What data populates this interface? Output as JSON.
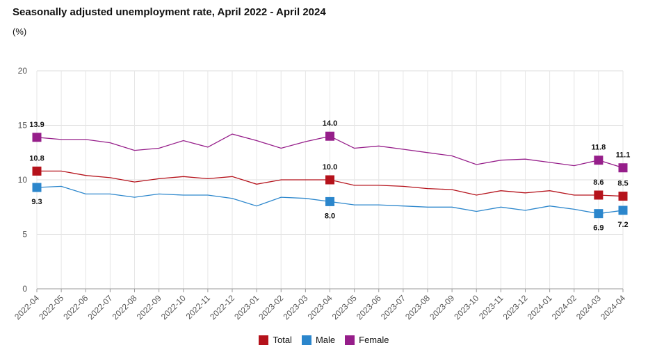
{
  "title": "Seasonally adjusted unemployment rate, April 2022 - April 2024",
  "unit": "(%)",
  "colors": {
    "Total": "#b5121b",
    "Male": "#2b86cc",
    "Female": "#961e8a"
  },
  "chart_data": {
    "type": "line",
    "title": "Seasonally adjusted unemployment rate, April 2022 - April 2024",
    "ylabel": "(%)",
    "xlabel": "",
    "ylim": [
      0,
      20
    ],
    "yticks": [
      0,
      5,
      10,
      15,
      20
    ],
    "grid": true,
    "legend": "bottom",
    "categories": [
      "2022-04",
      "2022-05",
      "2022-06",
      "2022-07",
      "2022-08",
      "2022-09",
      "2022-10",
      "2022-11",
      "2022-12",
      "2023-01",
      "2023-02",
      "2023-03",
      "2023-04",
      "2023-05",
      "2023-06",
      "2023-07",
      "2023-08",
      "2023-09",
      "2023-10",
      "2023-11",
      "2023-12",
      "2024-01",
      "2024-02",
      "2024-03",
      "2024-04"
    ],
    "series": [
      {
        "name": "Total",
        "color": "#b5121b",
        "values": [
          10.8,
          10.8,
          10.4,
          10.2,
          9.8,
          10.1,
          10.3,
          10.1,
          10.3,
          9.6,
          10.0,
          10.0,
          10.0,
          9.5,
          9.5,
          9.4,
          9.2,
          9.1,
          8.6,
          9.0,
          8.8,
          9.0,
          8.6,
          8.6,
          8.5
        ]
      },
      {
        "name": "Male",
        "color": "#2b86cc",
        "values": [
          9.3,
          9.4,
          8.7,
          8.7,
          8.4,
          8.7,
          8.6,
          8.6,
          8.3,
          7.6,
          8.4,
          8.3,
          8.0,
          7.7,
          7.7,
          7.6,
          7.5,
          7.5,
          7.1,
          7.5,
          7.2,
          7.6,
          7.3,
          6.9,
          7.2
        ]
      },
      {
        "name": "Female",
        "color": "#961e8a",
        "values": [
          13.9,
          13.7,
          13.7,
          13.4,
          12.7,
          12.9,
          13.6,
          13.0,
          14.2,
          13.6,
          12.9,
          13.5,
          14.0,
          12.9,
          13.1,
          12.8,
          12.5,
          12.2,
          11.4,
          11.8,
          11.9,
          11.6,
          11.3,
          11.8,
          11.1
        ]
      }
    ],
    "data_labels": {
      "Total": [
        {
          "category": "2022-04",
          "text": "10.8",
          "pos": "above"
        },
        {
          "category": "2023-04",
          "text": "10.0",
          "pos": "above"
        },
        {
          "category": "2024-03",
          "text": "8.6",
          "pos": "above"
        },
        {
          "category": "2024-04",
          "text": "8.5",
          "pos": "above"
        }
      ],
      "Male": [
        {
          "category": "2022-04",
          "text": "9.3",
          "pos": "below"
        },
        {
          "category": "2023-04",
          "text": "8.0",
          "pos": "below"
        },
        {
          "category": "2024-03",
          "text": "6.9",
          "pos": "below"
        },
        {
          "category": "2024-04",
          "text": "7.2",
          "pos": "below"
        }
      ],
      "Female": [
        {
          "category": "2022-04",
          "text": "13.9",
          "pos": "above"
        },
        {
          "category": "2023-04",
          "text": "14.0",
          "pos": "above"
        },
        {
          "category": "2024-03",
          "text": "11.8",
          "pos": "above"
        },
        {
          "category": "2024-04",
          "text": "11.1",
          "pos": "above"
        }
      ]
    }
  }
}
